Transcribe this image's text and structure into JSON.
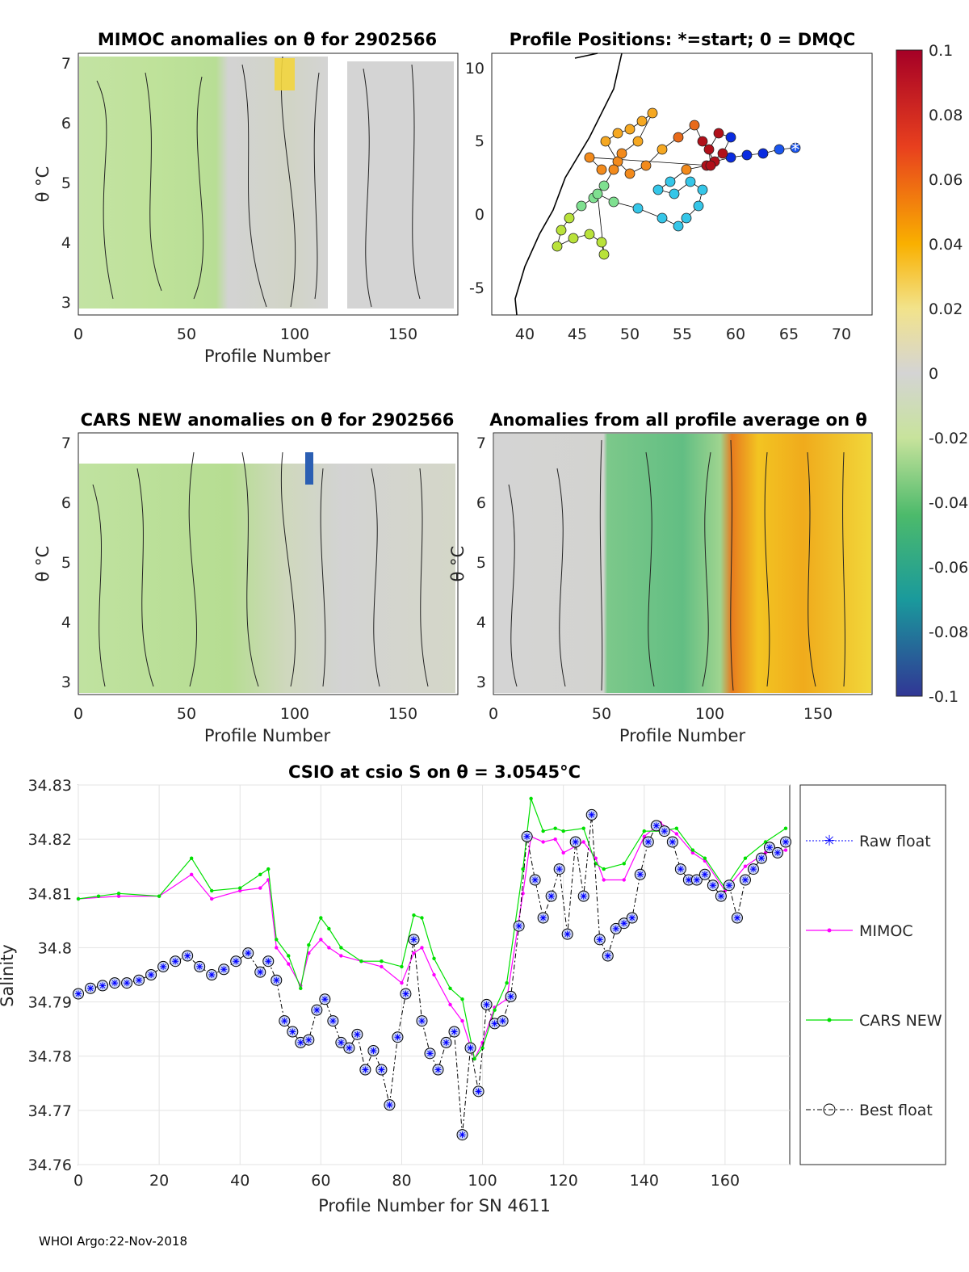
{
  "panels": {
    "mimoc": {
      "title": "MIMOC anomalies on θ  for 2902566",
      "xlabel": "Profile Number",
      "ylabel": "θ °C",
      "xticks": [
        "0",
        "50",
        "100",
        "150"
      ],
      "yticks": [
        "3",
        "4",
        "5",
        "6",
        "7"
      ]
    },
    "positions": {
      "title": "Profile Positions: *=start; 0 = DMQC",
      "xticks": [
        "40",
        "45",
        "50",
        "55",
        "60",
        "65",
        "70"
      ],
      "yticks": [
        "-5",
        "0",
        "5",
        "10"
      ]
    },
    "cars": {
      "title": "CARS NEW anomalies on θ for 2902566",
      "xlabel": "Profile Number",
      "ylabel": "θ °C",
      "xticks": [
        "0",
        "50",
        "100",
        "150"
      ],
      "yticks": [
        "3",
        "4",
        "5",
        "6",
        "7"
      ]
    },
    "avg": {
      "title": "Anomalies from all profile average on θ",
      "xlabel": "Profile Number",
      "ylabel": "θ °C",
      "xticks": [
        "0",
        "50",
        "100",
        "150"
      ],
      "yticks": [
        "3",
        "4",
        "5",
        "6",
        "7"
      ]
    }
  },
  "colorbar": {
    "ticks": [
      "0.1",
      "0.08",
      "0.06",
      "0.04",
      "0.02",
      "0",
      "-0.02",
      "-0.04",
      "-0.06",
      "-0.08",
      "-0.1"
    ]
  },
  "chart_data": {
    "type": "line",
    "title": "CSIO at csio S on θ = 3.0545°C",
    "xlabel": "Profile Number for SN 4611",
    "ylabel": "Salinity",
    "xlim": [
      0,
      176
    ],
    "ylim": [
      34.76,
      34.83
    ],
    "xticks": [
      "0",
      "20",
      "40",
      "60",
      "80",
      "100",
      "120",
      "140",
      "160"
    ],
    "yticks": [
      "34.76",
      "34.77",
      "34.78",
      "34.79",
      "34.8",
      "34.81",
      "34.82",
      "34.83"
    ],
    "grid": true,
    "legend_position": "right",
    "series": [
      {
        "name": "Raw float",
        "color": "#0000ff"
      },
      {
        "name": "MIMOC",
        "color": "#ff00ff",
        "x": [
          0,
          10,
          20,
          28,
          33,
          40,
          45,
          47,
          49,
          52,
          55,
          57,
          60,
          62,
          65,
          70,
          75,
          80,
          83,
          85,
          88,
          92,
          95,
          98,
          100,
          103,
          106,
          110,
          112,
          115,
          118,
          120,
          125,
          128,
          130,
          135,
          140,
          144,
          148,
          152,
          155,
          160,
          165,
          170,
          175
        ],
        "values": [
          34.809,
          34.8095,
          34.8095,
          34.8135,
          34.809,
          34.8105,
          34.811,
          34.8125,
          34.8,
          34.797,
          34.793,
          34.799,
          34.8015,
          34.8,
          34.7985,
          34.7975,
          34.7965,
          34.7935,
          34.799,
          34.8,
          34.795,
          34.7895,
          34.7865,
          34.7795,
          34.7825,
          34.789,
          34.7905,
          34.81,
          34.8205,
          34.8195,
          34.82,
          34.8175,
          34.8195,
          34.8165,
          34.8125,
          34.8125,
          34.8205,
          34.823,
          34.821,
          34.8175,
          34.816,
          34.8105,
          34.815,
          34.8175,
          34.818
        ]
      },
      {
        "name": "CARS NEW",
        "color": "#00e000",
        "x": [
          0,
          5,
          10,
          20,
          28,
          33,
          40,
          45,
          47,
          49,
          52,
          55,
          57,
          60,
          62,
          65,
          70,
          75,
          80,
          83,
          85,
          88,
          92,
          95,
          98,
          100,
          103,
          106,
          110,
          112,
          115,
          118,
          120,
          125,
          128,
          130,
          135,
          140,
          144,
          148,
          152,
          155,
          160,
          165,
          170,
          175
        ],
        "values": [
          34.809,
          34.8095,
          34.81,
          34.8095,
          34.8165,
          34.8105,
          34.811,
          34.8135,
          34.8145,
          34.8015,
          34.7985,
          34.7925,
          34.8005,
          34.8055,
          34.8035,
          34.8,
          34.7975,
          34.7975,
          34.7965,
          34.806,
          34.8055,
          34.798,
          34.7925,
          34.7905,
          34.7795,
          34.7815,
          34.7885,
          34.7935,
          34.8145,
          34.8275,
          34.8215,
          34.822,
          34.8215,
          34.822,
          34.8155,
          34.8145,
          34.8155,
          34.8215,
          34.8215,
          34.822,
          34.818,
          34.8165,
          34.811,
          34.8165,
          34.8195,
          34.822
        ]
      },
      {
        "name": "Best float",
        "color": "#000000",
        "x": [
          0,
          3,
          6,
          9,
          12,
          15,
          18,
          21,
          24,
          27,
          30,
          33,
          36,
          39,
          42,
          45,
          47,
          49,
          51,
          53,
          55,
          57,
          59,
          61,
          63,
          65,
          67,
          69,
          71,
          73,
          75,
          77,
          79,
          81,
          83,
          85,
          87,
          89,
          91,
          93,
          95,
          97,
          99,
          101,
          103,
          105,
          107,
          109,
          111,
          113,
          115,
          117,
          119,
          121,
          123,
          125,
          127,
          129,
          131,
          133,
          135,
          137,
          139,
          141,
          143,
          145,
          147,
          149,
          151,
          153,
          155,
          157,
          159,
          161,
          163,
          165,
          167,
          169,
          171,
          173,
          175
        ],
        "values": [
          34.7915,
          34.7925,
          34.793,
          34.7935,
          34.7935,
          34.794,
          34.795,
          34.7965,
          34.7975,
          34.7985,
          34.7965,
          34.795,
          34.796,
          34.7975,
          34.799,
          34.7955,
          34.7975,
          34.794,
          34.7865,
          34.7845,
          34.7825,
          34.783,
          34.7885,
          34.7905,
          34.7865,
          34.7825,
          34.7815,
          34.784,
          34.7775,
          34.781,
          34.7775,
          34.771,
          34.7835,
          34.7915,
          34.8015,
          34.7865,
          34.7805,
          34.7775,
          34.7825,
          34.7845,
          34.7655,
          34.7815,
          34.7735,
          34.7895,
          34.786,
          34.7865,
          34.791,
          34.804,
          34.8205,
          34.8125,
          34.8055,
          34.8095,
          34.8145,
          34.8025,
          34.8195,
          34.8095,
          34.8245,
          34.8015,
          34.7985,
          34.8035,
          34.8045,
          34.8055,
          34.8135,
          34.8195,
          34.8225,
          34.8215,
          34.8195,
          34.8145,
          34.8125,
          34.8125,
          34.8135,
          34.8115,
          34.8095,
          34.8115,
          34.8055,
          34.8125,
          34.8145,
          34.8165,
          34.8185,
          34.8175,
          34.8195
        ]
      }
    ]
  },
  "footer": "WHOI Argo:22-Nov-2018"
}
